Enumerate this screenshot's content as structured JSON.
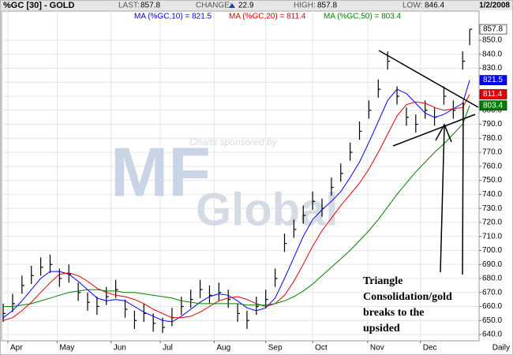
{
  "chart_data": {
    "type": "ohlc",
    "symbol": "%GC [30] - GOLD",
    "header": {
      "last_label": "LAST:",
      "last": "857.8",
      "change_label": "CHANGE:",
      "change": "22.9",
      "high_label": "HIGH:",
      "high": "857.8",
      "low_label": "LOW:",
      "low": "846.4",
      "date": "1/2/2008"
    },
    "sponsor": "Charts sponsored by",
    "logo_big": "MF",
    "logo_small": "Global",
    "annotation": [
      "Triangle",
      "Consolidation/gold",
      "breaks to the",
      "upsided"
    ],
    "x_label": "Daily",
    "x": [
      0,
      4,
      8,
      12,
      16,
      20,
      24,
      28,
      32,
      36,
      40,
      44,
      48,
      52,
      56,
      60,
      64,
      68,
      72,
      76,
      80,
      84,
      88,
      92,
      96,
      100,
      104,
      108,
      112,
      116,
      120,
      124,
      128,
      132,
      136,
      140,
      144,
      148,
      152,
      156,
      160,
      164,
      168,
      172,
      176,
      180,
      184,
      188,
      192,
      196,
      199
    ],
    "high": [
      662,
      669,
      682,
      689,
      695,
      697,
      687,
      690,
      677,
      670,
      667,
      674,
      679,
      665,
      657,
      662,
      655,
      652,
      659,
      667,
      672,
      679,
      675,
      677,
      672,
      662,
      657,
      667,
      672,
      687,
      712,
      722,
      732,
      742,
      737,
      752,
      762,
      777,
      792,
      807,
      822,
      842,
      817,
      802,
      797,
      807,
      802,
      817,
      807,
      842,
      857.8
    ],
    "low": [
      649,
      656,
      669,
      676,
      682,
      684,
      674,
      677,
      664,
      657,
      654,
      661,
      666,
      652,
      644,
      649,
      642,
      641,
      646,
      654,
      659,
      666,
      662,
      664,
      659,
      649,
      644,
      654,
      659,
      674,
      699,
      709,
      719,
      729,
      724,
      739,
      749,
      764,
      779,
      794,
      809,
      829,
      804,
      789,
      784,
      794,
      789,
      804,
      794,
      829,
      846.4
    ],
    "close": [
      655,
      662,
      675,
      682,
      688,
      690,
      680,
      683,
      670,
      663,
      660,
      667,
      672,
      658,
      650,
      655,
      648,
      645,
      652,
      660,
      665,
      672,
      668,
      670,
      665,
      655,
      650,
      660,
      665,
      680,
      705,
      715,
      725,
      735,
      730,
      745,
      755,
      770,
      785,
      800,
      815,
      835,
      810,
      795,
      790,
      800,
      795,
      810,
      800,
      835,
      857.8
    ],
    "bar_color": "#000000",
    "series": [
      {
        "name": "MA (%GC,10) = 821.5",
        "color": "#0000ff",
        "values": [
          652,
          657,
          664,
          672,
          680,
          685,
          685,
          683,
          678,
          672,
          666,
          664,
          665,
          664,
          660,
          656,
          653,
          650,
          649,
          653,
          658,
          663,
          667,
          669,
          668,
          664,
          659,
          657,
          659,
          666,
          680,
          695,
          710,
          722,
          729,
          735,
          742,
          752,
          763,
          777,
          792,
          807,
          815,
          812,
          805,
          798,
          795,
          797,
          801,
          805,
          821.5
        ]
      },
      {
        "name": "MA (%GC,20) = 811.4",
        "color": "#e00000",
        "values": [
          650,
          652,
          657,
          663,
          670,
          677,
          683,
          684,
          682,
          678,
          673,
          670,
          668,
          667,
          665,
          662,
          658,
          655,
          652,
          652,
          653,
          656,
          660,
          664,
          666,
          667,
          665,
          662,
          660,
          662,
          668,
          678,
          690,
          703,
          714,
          723,
          732,
          740,
          748,
          758,
          770,
          783,
          796,
          804,
          806,
          805,
          802,
          800,
          801,
          802,
          811.4
        ]
      },
      {
        "name": "MA (%GC,50) = 803.4",
        "color": "#008000",
        "values": [
          660,
          660,
          661,
          662,
          664,
          666,
          668,
          670,
          671,
          672,
          672,
          671,
          671,
          670,
          670,
          669,
          668,
          667,
          666,
          664,
          663,
          662,
          662,
          662,
          662,
          662,
          661,
          661,
          661,
          662,
          664,
          667,
          671,
          676,
          682,
          688,
          694,
          700,
          707,
          714,
          722,
          731,
          740,
          748,
          756,
          763,
          770,
          776,
          783,
          790,
          803.4
        ]
      }
    ],
    "xlim": [
      -0.7,
      203
    ],
    "xticks": [
      {
        "value": 2,
        "label": "Apr"
      },
      {
        "value": 23,
        "label": "May"
      },
      {
        "value": 46,
        "label": "Jun"
      },
      {
        "value": 67,
        "label": "Jul"
      },
      {
        "value": 90,
        "label": "Aug"
      },
      {
        "value": 112,
        "label": "Sep"
      },
      {
        "value": 132,
        "label": "Oct"
      },
      {
        "value": 155.5,
        "label": "Nov"
      },
      {
        "value": 178,
        "label": "Dec"
      }
    ],
    "ylim": [
      635.5,
      870.8
    ],
    "yticks": [
      {
        "value": 640,
        "label": "640.0"
      },
      {
        "value": 650,
        "label": "650.0"
      },
      {
        "value": 660,
        "label": "660.0"
      },
      {
        "value": 670,
        "label": "670.0"
      },
      {
        "value": 680,
        "label": "680.0"
      },
      {
        "value": 690,
        "label": "690.0"
      },
      {
        "value": 700,
        "label": "700.0"
      },
      {
        "value": 710,
        "label": "710.0"
      },
      {
        "value": 720,
        "label": "720.0"
      },
      {
        "value": 730,
        "label": "730.0"
      },
      {
        "value": 740,
        "label": "740.0"
      },
      {
        "value": 750,
        "label": "750.0"
      },
      {
        "value": 760,
        "label": "760.0"
      },
      {
        "value": 770,
        "label": "770.0"
      },
      {
        "value": 780,
        "label": "780.0"
      },
      {
        "value": 790,
        "label": "790.0"
      },
      {
        "value": 800,
        "label": "800.0"
      },
      {
        "value": 810,
        "label": "810.0"
      },
      {
        "value": 820,
        "label": "820.0"
      },
      {
        "value": 830,
        "label": "830.0"
      },
      {
        "value": 840,
        "label": "840.0"
      },
      {
        "value": 850,
        "label": "850.0"
      }
    ],
    "grid": true
  }
}
